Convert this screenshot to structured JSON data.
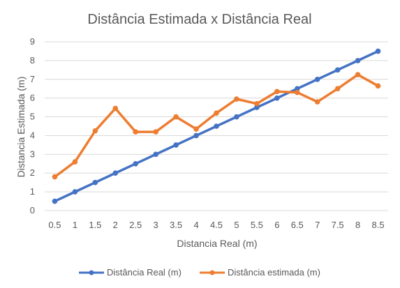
{
  "chart_data": {
    "type": "line",
    "title": "Distância Estimada x Distância Real",
    "xlabel": "Distancia Real (m)",
    "ylabel": "Distancia Estimada (m)",
    "categories": [
      "0.5",
      "1",
      "1.5",
      "2",
      "2.5",
      "3",
      "3.5",
      "4",
      "4.5",
      "5",
      "5.5",
      "6",
      "6.5",
      "7",
      "7.5",
      "8",
      "8.5"
    ],
    "yticks": [
      "0",
      "1",
      "2",
      "3",
      "4",
      "5",
      "6",
      "7",
      "8",
      "9"
    ],
    "ylim": [
      0,
      9
    ],
    "grid": "horizontal",
    "legend_position": "bottom",
    "series": [
      {
        "name": "Distância Real (m)",
        "color": "#4472C4",
        "values": [
          0.5,
          1,
          1.5,
          2,
          2.5,
          3,
          3.5,
          4,
          4.5,
          5,
          5.5,
          6,
          6.5,
          7,
          7.5,
          8,
          8.5
        ]
      },
      {
        "name": "Distância estimada (m)",
        "color": "#ED7D31",
        "values": [
          1.8,
          2.6,
          4.25,
          5.45,
          4.2,
          4.2,
          5.0,
          4.35,
          5.2,
          5.95,
          5.7,
          6.35,
          6.3,
          5.8,
          6.5,
          7.25,
          6.65
        ]
      }
    ]
  }
}
